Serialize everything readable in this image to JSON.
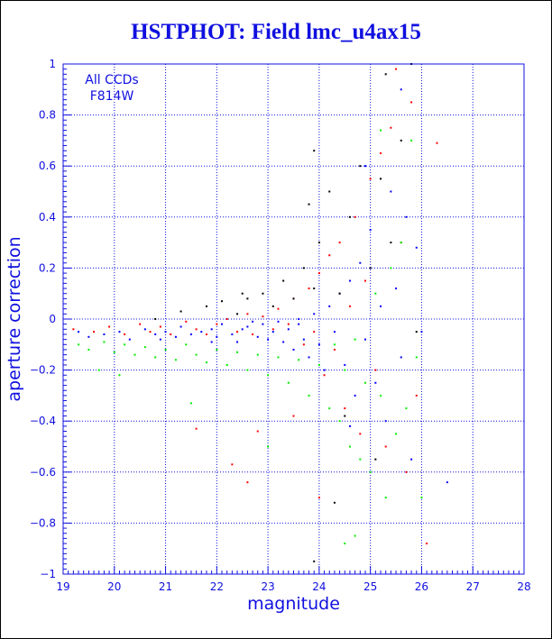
{
  "chart_data": {
    "type": "scatter",
    "title": "HSTPHOT: Field lmc_u4ax15",
    "xlabel": "magnitude",
    "ylabel": "aperture correction",
    "xlim": [
      19,
      28
    ],
    "ylim": [
      -1,
      1
    ],
    "xticks": [
      "19",
      "20",
      "21",
      "22",
      "23",
      "24",
      "25",
      "26",
      "27",
      "28"
    ],
    "yticks": [
      "1",
      "0.8",
      "0.6",
      "0.4",
      "0.2",
      "0",
      "−0.2",
      "−0.4",
      "−0.6",
      "−0.8",
      "−1"
    ],
    "grid": true,
    "annotation": [
      "All CCDs",
      "F814W"
    ],
    "series": [
      {
        "color": "#0000ff",
        "points": [
          [
            19.3,
            -0.05
          ],
          [
            19.5,
            -0.07
          ],
          [
            19.8,
            -0.06
          ],
          [
            20.1,
            -0.05
          ],
          [
            20.3,
            -0.08
          ],
          [
            20.6,
            -0.04
          ],
          [
            20.8,
            -0.06
          ],
          [
            21.0,
            -0.05
          ],
          [
            21.2,
            -0.07
          ],
          [
            21.3,
            -0.03
          ],
          [
            21.5,
            -0.06
          ],
          [
            21.7,
            -0.05
          ],
          [
            21.9,
            -0.04
          ],
          [
            22.0,
            -0.07
          ],
          [
            22.1,
            -0.02
          ],
          [
            22.3,
            -0.06
          ],
          [
            22.4,
            -0.09
          ],
          [
            22.5,
            -0.04
          ],
          [
            22.6,
            -0.03
          ],
          [
            22.8,
            -0.07
          ],
          [
            22.9,
            -0.02
          ],
          [
            23.0,
            -0.08
          ],
          [
            23.1,
            -0.05
          ],
          [
            23.2,
            -0.01
          ],
          [
            23.3,
            -0.09
          ],
          [
            23.4,
            -0.04
          ],
          [
            23.5,
            -0.12
          ],
          [
            23.6,
            -0.02
          ],
          [
            23.7,
            -0.08
          ],
          [
            23.8,
            -0.15
          ],
          [
            23.9,
            0.02
          ],
          [
            24.0,
            -0.1
          ],
          [
            24.1,
            -0.2
          ],
          [
            24.2,
            0.05
          ],
          [
            24.3,
            -0.05
          ],
          [
            24.4,
            0.1
          ],
          [
            24.5,
            -0.18
          ],
          [
            24.6,
            0.15
          ],
          [
            24.7,
            -0.3
          ],
          [
            24.8,
            0.22
          ],
          [
            24.9,
            -0.08
          ],
          [
            25.0,
            0.35
          ],
          [
            25.1,
            -0.25
          ],
          [
            25.2,
            0.05
          ],
          [
            25.3,
            -0.4
          ],
          [
            25.4,
            0.5
          ],
          [
            25.5,
            0.12
          ],
          [
            25.6,
            -0.15
          ],
          [
            25.7,
            0.4
          ],
          [
            25.8,
            -0.55
          ],
          [
            25.9,
            0.28
          ],
          [
            26.0,
            -0.05
          ],
          [
            26.5,
            -0.64
          ],
          [
            23.6,
            0.0
          ],
          [
            22.7,
            -0.01
          ],
          [
            21.9,
            -0.09
          ],
          [
            20.9,
            -0.08
          ],
          [
            24.6,
            -0.42
          ],
          [
            24.9,
            0.6
          ],
          [
            25.6,
            0.9
          ]
        ]
      },
      {
        "color": "#ff0000",
        "points": [
          [
            19.2,
            -0.04
          ],
          [
            19.6,
            -0.05
          ],
          [
            19.9,
            -0.03
          ],
          [
            20.2,
            -0.06
          ],
          [
            20.5,
            -0.02
          ],
          [
            20.7,
            -0.05
          ],
          [
            20.9,
            -0.03
          ],
          [
            21.1,
            -0.06
          ],
          [
            21.4,
            -0.01
          ],
          [
            21.6,
            -0.04
          ],
          [
            21.8,
            -0.06
          ],
          [
            22.0,
            -0.02
          ],
          [
            22.2,
            0.0
          ],
          [
            22.4,
            -0.05
          ],
          [
            22.6,
            0.02
          ],
          [
            22.7,
            -0.06
          ],
          [
            22.9,
            0.01
          ],
          [
            23.1,
            -0.04
          ],
          [
            23.2,
            0.04
          ],
          [
            23.4,
            -0.02
          ],
          [
            23.5,
            0.08
          ],
          [
            23.7,
            -0.1
          ],
          [
            23.8,
            0.12
          ],
          [
            23.9,
            -0.05
          ],
          [
            24.0,
            0.18
          ],
          [
            24.1,
            -0.22
          ],
          [
            24.2,
            0.25
          ],
          [
            24.3,
            -0.12
          ],
          [
            24.4,
            0.3
          ],
          [
            24.5,
            -0.35
          ],
          [
            24.6,
            0.05
          ],
          [
            24.7,
            0.4
          ],
          [
            24.8,
            -0.45
          ],
          [
            24.9,
            0.15
          ],
          [
            25.0,
            0.55
          ],
          [
            25.1,
            -0.2
          ],
          [
            25.2,
            0.65
          ],
          [
            25.3,
            -0.5
          ],
          [
            25.4,
            0.75
          ],
          [
            25.5,
            0.98
          ],
          [
            25.6,
            0.3
          ],
          [
            25.7,
            -0.6
          ],
          [
            25.8,
            0.85
          ],
          [
            25.9,
            -0.3
          ],
          [
            26.1,
            -0.88
          ],
          [
            26.3,
            0.69
          ],
          [
            22.3,
            -0.57
          ],
          [
            22.6,
            -0.64
          ],
          [
            21.6,
            -0.43
          ],
          [
            22.8,
            -0.44
          ],
          [
            23.5,
            -0.38
          ],
          [
            24.0,
            -0.7
          ]
        ]
      },
      {
        "color": "#00ee00",
        "points": [
          [
            19.3,
            -0.1
          ],
          [
            19.5,
            -0.12
          ],
          [
            19.8,
            -0.09
          ],
          [
            20.0,
            -0.13
          ],
          [
            20.2,
            -0.1
          ],
          [
            20.4,
            -0.14
          ],
          [
            20.6,
            -0.11
          ],
          [
            20.8,
            -0.15
          ],
          [
            21.0,
            -0.12
          ],
          [
            21.2,
            -0.16
          ],
          [
            21.4,
            -0.1
          ],
          [
            21.6,
            -0.14
          ],
          [
            21.8,
            -0.17
          ],
          [
            22.0,
            -0.12
          ],
          [
            22.2,
            -0.18
          ],
          [
            22.4,
            -0.13
          ],
          [
            22.6,
            -0.2
          ],
          [
            22.8,
            -0.14
          ],
          [
            23.0,
            -0.22
          ],
          [
            23.2,
            -0.15
          ],
          [
            23.4,
            -0.25
          ],
          [
            23.6,
            -0.16
          ],
          [
            23.8,
            -0.3
          ],
          [
            24.0,
            -0.18
          ],
          [
            24.2,
            -0.35
          ],
          [
            24.3,
            -0.1
          ],
          [
            24.4,
            -0.4
          ],
          [
            24.5,
            -0.2
          ],
          [
            24.6,
            -0.5
          ],
          [
            24.7,
            -0.08
          ],
          [
            24.8,
            -0.55
          ],
          [
            24.9,
            -0.25
          ],
          [
            25.0,
            -0.6
          ],
          [
            25.1,
            0.1
          ],
          [
            25.2,
            -0.3
          ],
          [
            25.3,
            -0.7
          ],
          [
            25.4,
            0.2
          ],
          [
            25.5,
            -0.45
          ],
          [
            25.6,
            0.3
          ],
          [
            25.7,
            -0.35
          ],
          [
            25.8,
            0.7
          ],
          [
            25.9,
            -0.15
          ],
          [
            26.0,
            -0.7
          ],
          [
            24.7,
            -0.85
          ],
          [
            24.5,
            -0.88
          ],
          [
            20.1,
            -0.22
          ],
          [
            19.7,
            -0.2
          ],
          [
            21.5,
            -0.33
          ],
          [
            23.0,
            -0.5
          ],
          [
            25.2,
            0.74
          ]
        ]
      },
      {
        "color": "#000000",
        "points": [
          [
            20.8,
            0.0
          ],
          [
            21.3,
            0.03
          ],
          [
            21.8,
            0.05
          ],
          [
            22.1,
            0.07
          ],
          [
            22.4,
            0.02
          ],
          [
            22.6,
            0.08
          ],
          [
            22.9,
            0.1
          ],
          [
            23.1,
            0.05
          ],
          [
            23.3,
            0.15
          ],
          [
            23.5,
            0.08
          ],
          [
            23.7,
            0.2
          ],
          [
            23.8,
            0.45
          ],
          [
            23.9,
            0.12
          ],
          [
            24.0,
            0.3
          ],
          [
            24.2,
            0.5
          ],
          [
            24.4,
            0.1
          ],
          [
            24.6,
            0.4
          ],
          [
            24.8,
            0.6
          ],
          [
            25.0,
            0.2
          ],
          [
            25.2,
            0.55
          ],
          [
            25.4,
            0.3
          ],
          [
            25.6,
            0.7
          ],
          [
            25.8,
            1.0
          ],
          [
            25.9,
            -0.05
          ],
          [
            24.5,
            -0.38
          ],
          [
            25.1,
            -0.55
          ],
          [
            23.9,
            -0.95
          ],
          [
            24.3,
            -0.72
          ],
          [
            22.5,
            0.1
          ],
          [
            23.9,
            0.66
          ],
          [
            25.3,
            0.96
          ]
        ]
      }
    ]
  }
}
